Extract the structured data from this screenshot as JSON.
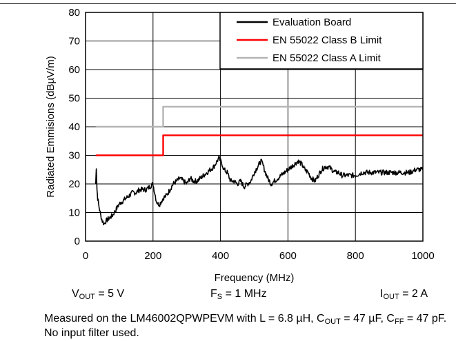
{
  "chart_data": {
    "type": "line",
    "title": "",
    "xlabel": "Frequency (MHz)",
    "ylabel": "Radiated Emmisions (dBµV/m)",
    "xlim": [
      0,
      1000
    ],
    "ylim": [
      0,
      80
    ],
    "xticks": [
      0,
      200,
      400,
      600,
      800,
      1000
    ],
    "yticks": [
      0,
      10,
      20,
      30,
      40,
      50,
      60,
      70,
      80
    ],
    "grid": true,
    "legend_position": "top-right",
    "series": [
      {
        "name": "Evaluation Board",
        "color": "#000000",
        "noisy": true,
        "x": [
          30,
          32,
          34,
          36,
          40,
          45,
          50,
          55,
          60,
          70,
          80,
          90,
          100,
          110,
          120,
          130,
          140,
          150,
          160,
          170,
          180,
          190,
          200,
          205,
          210,
          215,
          220,
          225,
          230,
          240,
          250,
          260,
          270,
          280,
          290,
          300,
          310,
          320,
          330,
          340,
          350,
          360,
          370,
          380,
          390,
          395,
          400,
          405,
          410,
          420,
          430,
          440,
          450,
          460,
          470,
          480,
          490,
          500,
          510,
          520,
          525,
          530,
          540,
          550,
          560,
          570,
          580,
          590,
          600,
          610,
          620,
          630,
          640,
          650,
          660,
          670,
          680,
          690,
          700,
          710,
          720,
          730,
          740,
          750,
          760,
          780,
          800,
          820,
          840,
          860,
          880,
          900,
          920,
          940,
          960,
          980,
          1000
        ],
        "y": [
          20,
          26,
          18,
          15,
          12,
          9,
          7,
          6,
          7,
          8,
          9,
          11,
          13,
          14,
          15,
          16,
          17,
          17,
          18,
          18,
          18,
          19,
          20,
          17,
          14,
          13,
          13,
          14,
          15,
          16,
          18,
          20,
          21,
          22,
          21,
          20,
          22,
          21,
          21,
          22,
          23,
          24,
          25,
          26,
          28,
          29,
          28,
          27,
          25,
          24,
          21,
          21,
          20,
          21,
          19,
          20,
          21,
          24,
          26,
          28,
          27,
          25,
          22,
          20,
          21,
          22,
          23,
          24,
          25,
          26,
          27,
          28,
          27,
          25,
          24,
          22,
          21,
          23,
          25,
          26,
          26,
          25,
          24,
          24,
          23,
          23,
          23,
          24,
          24,
          24,
          24,
          24,
          24,
          24,
          24,
          25,
          25
        ]
      },
      {
        "name": "EN 55022 Class B Limit",
        "color": "#ff0000",
        "x": [
          30,
          230,
          230,
          1000
        ],
        "y": [
          30,
          30,
          37,
          37
        ]
      },
      {
        "name": "EN 55022 Class A Limit",
        "color": "#b4b4b4",
        "x": [
          30,
          230,
          230,
          1000
        ],
        "y": [
          40,
          40,
          47,
          47
        ]
      }
    ]
  },
  "conditions": {
    "vout_main": "V",
    "vout_sub": "OUT",
    "vout_rest": " = 5 V",
    "fs_main": "F",
    "fs_sub": "S",
    "fs_rest": " = 1 MHz",
    "iout_main": "I",
    "iout_sub": "OUT",
    "iout_rest": " = 2 A"
  },
  "caption": {
    "part1": "Measured on the LM46002QPWPEVM with L = 6.8 µH, C",
    "sub1": "OUT",
    "part2": " = 47 µF, C",
    "sub2": "FF",
    "part3": " = 47 pF. No input filter used."
  }
}
